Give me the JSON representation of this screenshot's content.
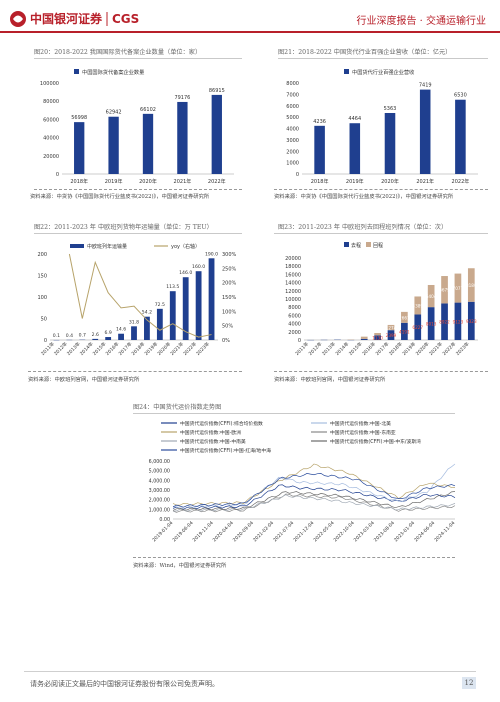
{
  "header": {
    "brand_cn": "中国银河证券",
    "brand_en": "CGS",
    "report_type": "行业深度报告 · 交通运输行业",
    "colors": {
      "brand_red": "#b8202a"
    }
  },
  "fig20": {
    "title": "图20：2018-2022 我国国际货代备案企业数量（单位：家）",
    "source": "资料来源：中货协《中国国际货代行业蓝皮书(2022)》，中国银河证券研究所",
    "chart_data": {
      "type": "bar",
      "categories": [
        "2018年",
        "2019年",
        "2020年",
        "2021年",
        "2022年"
      ],
      "series": [
        {
          "name": "中国国际货代备案企业数量",
          "values": [
            56998,
            62942,
            66102,
            79176,
            86915
          ]
        }
      ],
      "value_labels": [
        "56998",
        "62942",
        "66102",
        "79176",
        "86915"
      ],
      "yticks": [
        "0",
        "20000",
        "40000",
        "60000",
        "80000",
        "100000"
      ],
      "ylim": [
        0,
        100000
      ],
      "color": "#1f3f8f"
    }
  },
  "fig21": {
    "title": "图21：2018-2022 中国货代行业百强企业营收（单位：亿元）",
    "source": "资料来源：中货协《中国国际货代行业蓝皮书(2022)》，中国银河证券研究所",
    "chart_data": {
      "type": "bar",
      "categories": [
        "2018年",
        "2019年",
        "2020年",
        "2021年",
        "2022年"
      ],
      "series": [
        {
          "name": "中国货代行业百强企业营收",
          "values": [
            4236,
            4464,
            5363,
            7419,
            6530
          ]
        }
      ],
      "value_labels": [
        "4236",
        "4464",
        "5363",
        "7419",
        "6530"
      ],
      "yticks": [
        "0",
        "1000",
        "2000",
        "3000",
        "4000",
        "5000",
        "6000",
        "7000",
        "8000"
      ],
      "ylim": [
        0,
        8000
      ],
      "color": "#1f3f8f"
    }
  },
  "fig22": {
    "title": "图22：2011-2023 年 中欧班列货物年运输量（单位：万 TEU）",
    "source": "资料来源：中欧班列官网，中国银河证券研究所",
    "chart_data": {
      "type": "bar+line",
      "categories": [
        "2011年",
        "2012年",
        "2013年",
        "2014年",
        "2015年",
        "2016年",
        "2017年",
        "2018年",
        "2019年",
        "2020年",
        "2021年",
        "2022年",
        "2023年"
      ],
      "series": [
        {
          "name": "中欧班列年运输量",
          "values": [
            0.1,
            0.4,
            0.7,
            2.6,
            6.9,
            14.6,
            31.8,
            54.2,
            72.5,
            113.5,
            146.0,
            160.0,
            190.0
          ]
        },
        {
          "name": "yoy（右轴）",
          "values": [
            null,
            300,
            75,
            271,
            165,
            112,
            118,
            70,
            34,
            57,
            29,
            10,
            19
          ]
        }
      ],
      "value_labels": [
        "0.1",
        "0.4",
        "0.7",
        "2.6",
        "6.9",
        "14.6",
        "31.8",
        "54.2",
        "72.5",
        "113.5",
        "146.0",
        "160.0",
        "190.0"
      ],
      "yticks": [
        "0",
        "50",
        "100",
        "150",
        "200"
      ],
      "y2ticks": [
        "0%",
        "50%",
        "100%",
        "150%",
        "200%",
        "250%",
        "300%"
      ],
      "ylim": [
        0,
        200
      ],
      "y2lim": [
        0,
        300
      ],
      "bar_color": "#1f3f8f",
      "line_color": "#b7a36a"
    }
  },
  "fig23": {
    "title": "图23：2011-2023 年 中欧班列去回程班列情况（单位：次）",
    "source": "资料来源：中欧班列官网，中国银河证券研究所",
    "chart_data": {
      "type": "stacked-bar",
      "categories": [
        "2011年",
        "2012年",
        "2013年",
        "2014年",
        "2015年",
        "2016年",
        "2017年",
        "2018年",
        "2019年",
        "2020年",
        "2021年",
        "2022年",
        "2023年"
      ],
      "series": [
        {
          "name": "去程",
          "values": [
            17,
            42,
            76,
            28,
            280,
            1130,
            2399,
            4191,
            6227,
            8013,
            8922,
            9123,
            9323
          ]
        },
        {
          "name": "回程",
          "values": [
            0,
            0,
            0,
            80,
            535,
            572,
            1274,
            2667,
            4389,
            5404,
            6679,
            7077,
            8180
          ]
        }
      ],
      "value_labels_bottom": [
        "",
        "",
        "",
        "",
        "",
        "1130",
        "2399",
        "4191",
        "6227",
        "8013",
        "8922",
        "9123",
        "9323"
      ],
      "value_labels_top": [
        "",
        "",
        "",
        "",
        "",
        "",
        "1274",
        "2667",
        "4389",
        "5404",
        "6679",
        "7077",
        "8180"
      ],
      "yticks": [
        "0",
        "2000",
        "4000",
        "6000",
        "8000",
        "10000",
        "12000",
        "14000",
        "16000",
        "18000",
        "20000"
      ],
      "ylim": [
        0,
        20000
      ],
      "colors": [
        "#1f3f8f",
        "#c9a98d"
      ],
      "label_colors": [
        "#e74c3c",
        "#ffffff"
      ]
    }
  },
  "fig24": {
    "title": "图24：中国货代运价指数走势图",
    "source": "资料来源：Wind，中国银河证券研究所",
    "legend": [
      {
        "name": "中国货代运价指数(CFFI):综合均价指数",
        "color": "#1f3f8f"
      },
      {
        "name": "中国货代运价指数:中国-北美",
        "color": "#a7bde0"
      },
      {
        "name": "中国货代运价指数:中国-欧洲",
        "color": "#b7a36a"
      },
      {
        "name": "中国货代运价指数:中国-东南亚",
        "color": "#888888"
      },
      {
        "name": "中国货代运价指数:中国-中南美",
        "color": "#9fa8b3"
      },
      {
        "name": "中国货代运价指数(CFFI):中国-中东/波斯湾",
        "color": "#6b6b6b"
      },
      {
        "name": "中国货代运价指数(CFFI):中国-红海/地中海",
        "color": "#2a4c9c"
      }
    ],
    "chart_data": {
      "type": "line",
      "xticks": [
        "2019-01-04",
        "2019-06-04",
        "2019-11-04",
        "2020-04-04",
        "2020-09-04",
        "2021-02-04",
        "2021-07-04",
        "2021-12-04",
        "2022-05-04",
        "2022-10-04",
        "2023-03-04",
        "2023-08-04",
        "2023-01-04",
        "2024-06-04",
        "2024-11-04"
      ],
      "yticks": [
        "0.00",
        "1,000.00",
        "2,000.00",
        "3,000.00",
        "4,000.00",
        "5,000.00",
        "6,000.00"
      ],
      "ylim": [
        0,
        6000
      ]
    }
  },
  "footer": {
    "disclaimer": "请务必阅读正文最后的中国银河证券股份有限公司免责声明。",
    "page": "12"
  }
}
